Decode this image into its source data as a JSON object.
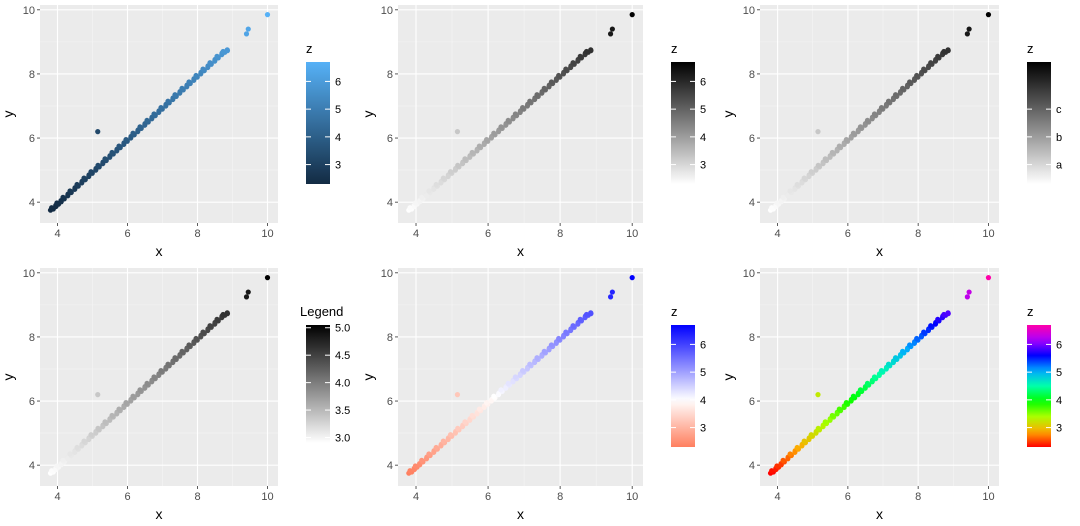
{
  "chart_data": [
    {
      "type": "scatter",
      "xlabel": "x",
      "ylabel": "y",
      "xlim": [
        3.5,
        10.3
      ],
      "ylim": [
        3.35,
        10.15
      ],
      "xticks": [
        "4",
        "6",
        "8",
        "10"
      ],
      "yticks": [
        "4",
        "6",
        "8",
        "10"
      ],
      "grid": true,
      "legend": {
        "title": "z",
        "placement": "right",
        "labels": [
          "3",
          "4",
          "5",
          "6"
        ],
        "range": [
          2.3,
          6.7
        ],
        "colors": [
          "#132B43",
          "#56B1F7"
        ]
      },
      "points": [
        [
          3.8,
          3.75
        ],
        [
          3.95,
          3.9
        ],
        [
          4.1,
          4.05
        ],
        [
          4.3,
          4.25
        ],
        [
          4.5,
          4.45
        ],
        [
          4.7,
          4.65
        ],
        [
          4.9,
          4.85
        ],
        [
          5.1,
          5.05
        ],
        [
          5.3,
          5.25
        ],
        [
          5.5,
          5.45
        ],
        [
          5.7,
          5.65
        ],
        [
          5.9,
          5.85
        ],
        [
          6.1,
          6.05
        ],
        [
          6.3,
          6.25
        ],
        [
          6.5,
          6.45
        ],
        [
          6.7,
          6.65
        ],
        [
          6.9,
          6.85
        ],
        [
          7.1,
          7.05
        ],
        [
          7.3,
          7.25
        ],
        [
          7.5,
          7.45
        ],
        [
          7.7,
          7.65
        ],
        [
          7.9,
          7.85
        ],
        [
          8.1,
          8.05
        ],
        [
          8.3,
          8.25
        ],
        [
          8.5,
          8.45
        ],
        [
          8.7,
          8.65
        ],
        [
          8.85,
          8.75
        ],
        [
          9.4,
          9.25
        ],
        [
          9.45,
          9.4
        ],
        [
          10.0,
          9.85
        ],
        [
          5.15,
          6.2
        ]
      ]
    },
    {
      "type": "scatter",
      "xlabel": "x",
      "ylabel": "y",
      "xlim": [
        3.5,
        10.3
      ],
      "ylim": [
        3.35,
        10.15
      ],
      "xticks": [
        "4",
        "6",
        "8",
        "10"
      ],
      "yticks": [
        "4",
        "6",
        "8",
        "10"
      ],
      "grid": true,
      "legend": {
        "title": "z",
        "placement": "right",
        "labels": [
          "3",
          "4",
          "5",
          "6"
        ],
        "range": [
          2.3,
          6.7
        ],
        "colors": [
          "#ffffff",
          "#000000"
        ]
      },
      "points": [
        [
          3.8,
          3.75
        ],
        [
          3.95,
          3.9
        ],
        [
          4.1,
          4.05
        ],
        [
          4.3,
          4.25
        ],
        [
          4.5,
          4.45
        ],
        [
          4.7,
          4.65
        ],
        [
          4.9,
          4.85
        ],
        [
          5.1,
          5.05
        ],
        [
          5.3,
          5.25
        ],
        [
          5.5,
          5.45
        ],
        [
          5.7,
          5.65
        ],
        [
          5.9,
          5.85
        ],
        [
          6.1,
          6.05
        ],
        [
          6.3,
          6.25
        ],
        [
          6.5,
          6.45
        ],
        [
          6.7,
          6.65
        ],
        [
          6.9,
          6.85
        ],
        [
          7.1,
          7.05
        ],
        [
          7.3,
          7.25
        ],
        [
          7.5,
          7.45
        ],
        [
          7.7,
          7.65
        ],
        [
          7.9,
          7.85
        ],
        [
          8.1,
          8.05
        ],
        [
          8.3,
          8.25
        ],
        [
          8.5,
          8.45
        ],
        [
          8.7,
          8.65
        ],
        [
          8.85,
          8.75
        ],
        [
          9.4,
          9.25
        ],
        [
          9.45,
          9.4
        ],
        [
          10.0,
          9.85
        ],
        [
          5.15,
          6.2
        ]
      ]
    },
    {
      "type": "scatter",
      "xlabel": "x",
      "ylabel": "y",
      "xlim": [
        3.5,
        10.3
      ],
      "ylim": [
        3.35,
        10.15
      ],
      "xticks": [
        "4",
        "6",
        "8",
        "10"
      ],
      "yticks": [
        "4",
        "6",
        "8",
        "10"
      ],
      "grid": true,
      "legend": {
        "title": "z",
        "placement": "right",
        "labels": [
          "a",
          "b",
          "c"
        ],
        "label_values": [
          3,
          4,
          5
        ],
        "range": [
          2.3,
          6.7
        ],
        "colors": [
          "#ffffff",
          "#000000"
        ]
      },
      "points": [
        [
          3.8,
          3.75
        ],
        [
          3.95,
          3.9
        ],
        [
          4.1,
          4.05
        ],
        [
          4.3,
          4.25
        ],
        [
          4.5,
          4.45
        ],
        [
          4.7,
          4.65
        ],
        [
          4.9,
          4.85
        ],
        [
          5.1,
          5.05
        ],
        [
          5.3,
          5.25
        ],
        [
          5.5,
          5.45
        ],
        [
          5.7,
          5.65
        ],
        [
          5.9,
          5.85
        ],
        [
          6.1,
          6.05
        ],
        [
          6.3,
          6.25
        ],
        [
          6.5,
          6.45
        ],
        [
          6.7,
          6.65
        ],
        [
          6.9,
          6.85
        ],
        [
          7.1,
          7.05
        ],
        [
          7.3,
          7.25
        ],
        [
          7.5,
          7.45
        ],
        [
          7.7,
          7.65
        ],
        [
          7.9,
          7.85
        ],
        [
          8.1,
          8.05
        ],
        [
          8.3,
          8.25
        ],
        [
          8.5,
          8.45
        ],
        [
          8.7,
          8.65
        ],
        [
          8.85,
          8.75
        ],
        [
          9.4,
          9.25
        ],
        [
          9.45,
          9.4
        ],
        [
          10.0,
          9.85
        ],
        [
          5.15,
          6.2
        ]
      ]
    },
    {
      "type": "scatter",
      "xlabel": "x",
      "ylabel": "y",
      "xlim": [
        3.5,
        10.3
      ],
      "ylim": [
        3.35,
        10.15
      ],
      "xticks": [
        "4",
        "6",
        "8",
        "10"
      ],
      "yticks": [
        "4",
        "6",
        "8",
        "10"
      ],
      "grid": true,
      "legend": {
        "title": "Legend",
        "placement": "right",
        "labels": [
          "3.0",
          "3.5",
          "4.0",
          "4.5",
          "5.0"
        ],
        "range": [
          2.9,
          5.05
        ],
        "colors": [
          "#ffffff",
          "#000000"
        ]
      },
      "points": [
        [
          3.8,
          3.75
        ],
        [
          3.95,
          3.9
        ],
        [
          4.1,
          4.05
        ],
        [
          4.3,
          4.25
        ],
        [
          4.5,
          4.45
        ],
        [
          4.7,
          4.65
        ],
        [
          4.9,
          4.85
        ],
        [
          5.1,
          5.05
        ],
        [
          5.3,
          5.25
        ],
        [
          5.5,
          5.45
        ],
        [
          5.7,
          5.65
        ],
        [
          5.9,
          5.85
        ],
        [
          6.1,
          6.05
        ],
        [
          6.3,
          6.25
        ],
        [
          6.5,
          6.45
        ],
        [
          6.7,
          6.65
        ],
        [
          6.9,
          6.85
        ],
        [
          7.1,
          7.05
        ],
        [
          7.3,
          7.25
        ],
        [
          7.5,
          7.45
        ],
        [
          7.7,
          7.65
        ],
        [
          7.9,
          7.85
        ],
        [
          8.1,
          8.05
        ],
        [
          8.3,
          8.25
        ],
        [
          8.5,
          8.45
        ],
        [
          8.7,
          8.65
        ],
        [
          8.85,
          8.75
        ],
        [
          9.4,
          9.25
        ],
        [
          9.45,
          9.4
        ],
        [
          10.0,
          9.85
        ],
        [
          5.15,
          6.2
        ]
      ]
    },
    {
      "type": "scatter",
      "xlabel": "x",
      "ylabel": "y",
      "xlim": [
        3.5,
        10.3
      ],
      "ylim": [
        3.35,
        10.15
      ],
      "xticks": [
        "4",
        "6",
        "8",
        "10"
      ],
      "yticks": [
        "4",
        "6",
        "8",
        "10"
      ],
      "grid": true,
      "legend": {
        "title": "z",
        "placement": "right",
        "labels": [
          "3",
          "4",
          "5",
          "6"
        ],
        "range": [
          2.3,
          6.7
        ],
        "colors": [
          "#FF7F5F",
          "#ffffff",
          "#0000ff"
        ],
        "midpoint": 4
      },
      "points": [
        [
          3.8,
          3.75
        ],
        [
          3.95,
          3.9
        ],
        [
          4.1,
          4.05
        ],
        [
          4.3,
          4.25
        ],
        [
          4.5,
          4.45
        ],
        [
          4.7,
          4.65
        ],
        [
          4.9,
          4.85
        ],
        [
          5.1,
          5.05
        ],
        [
          5.3,
          5.25
        ],
        [
          5.5,
          5.45
        ],
        [
          5.7,
          5.65
        ],
        [
          5.9,
          5.85
        ],
        [
          6.1,
          6.05
        ],
        [
          6.3,
          6.25
        ],
        [
          6.5,
          6.45
        ],
        [
          6.7,
          6.65
        ],
        [
          6.9,
          6.85
        ],
        [
          7.1,
          7.05
        ],
        [
          7.3,
          7.25
        ],
        [
          7.5,
          7.45
        ],
        [
          7.7,
          7.65
        ],
        [
          7.9,
          7.85
        ],
        [
          8.1,
          8.05
        ],
        [
          8.3,
          8.25
        ],
        [
          8.5,
          8.45
        ],
        [
          8.7,
          8.65
        ],
        [
          8.85,
          8.75
        ],
        [
          9.4,
          9.25
        ],
        [
          9.45,
          9.4
        ],
        [
          10.0,
          9.85
        ],
        [
          5.15,
          6.2
        ]
      ]
    },
    {
      "type": "scatter",
      "xlabel": "x",
      "ylabel": "y",
      "xlim": [
        3.5,
        10.3
      ],
      "ylim": [
        3.35,
        10.15
      ],
      "xticks": [
        "4",
        "6",
        "8",
        "10"
      ],
      "yticks": [
        "4",
        "6",
        "8",
        "10"
      ],
      "grid": true,
      "legend": {
        "title": "z",
        "placement": "right",
        "labels": [
          "3",
          "4",
          "5",
          "6"
        ],
        "range": [
          2.3,
          6.7
        ],
        "colors": [
          "#FF0000",
          "#FFAA00",
          "#AAFF00",
          "#00FF00",
          "#00FFAA",
          "#00AAFF",
          "#0000FF",
          "#AA00FF",
          "#FF00AA"
        ]
      },
      "points": [
        [
          3.8,
          3.75
        ],
        [
          3.95,
          3.9
        ],
        [
          4.1,
          4.05
        ],
        [
          4.3,
          4.25
        ],
        [
          4.5,
          4.45
        ],
        [
          4.7,
          4.65
        ],
        [
          4.9,
          4.85
        ],
        [
          5.1,
          5.05
        ],
        [
          5.3,
          5.25
        ],
        [
          5.5,
          5.45
        ],
        [
          5.7,
          5.65
        ],
        [
          5.9,
          5.85
        ],
        [
          6.1,
          6.05
        ],
        [
          6.3,
          6.25
        ],
        [
          6.5,
          6.45
        ],
        [
          6.7,
          6.65
        ],
        [
          6.9,
          6.85
        ],
        [
          7.1,
          7.05
        ],
        [
          7.3,
          7.25
        ],
        [
          7.5,
          7.45
        ],
        [
          7.7,
          7.65
        ],
        [
          7.9,
          7.85
        ],
        [
          8.1,
          8.05
        ],
        [
          8.3,
          8.25
        ],
        [
          8.5,
          8.45
        ],
        [
          8.7,
          8.65
        ],
        [
          8.85,
          8.75
        ],
        [
          9.4,
          9.25
        ],
        [
          9.45,
          9.4
        ],
        [
          10.0,
          9.85
        ],
        [
          5.15,
          6.2
        ]
      ]
    }
  ]
}
